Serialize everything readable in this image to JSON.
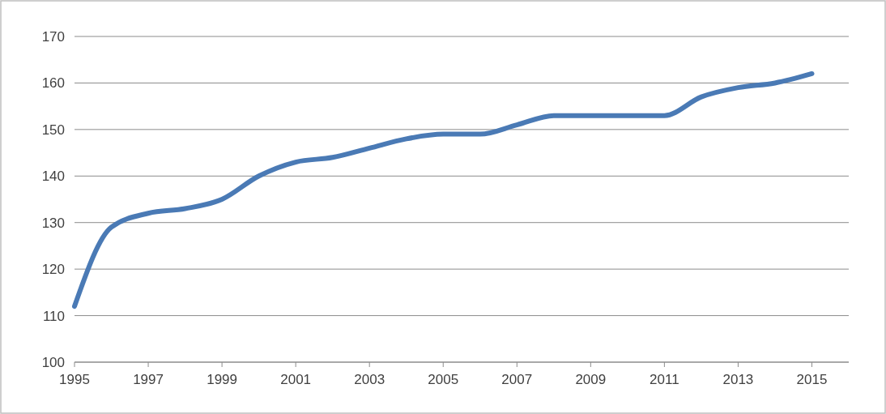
{
  "chart_data": {
    "type": "line",
    "x": [
      1995,
      1996,
      1997,
      1998,
      1999,
      2000,
      2001,
      2002,
      2003,
      2004,
      2005,
      2006,
      2007,
      2008,
      2009,
      2010,
      2011,
      2012,
      2013,
      2014,
      2015
    ],
    "series": [
      {
        "color": "#4a7ab5",
        "values": [
          112,
          129,
          132,
          133,
          135,
          140,
          143,
          144,
          146,
          148,
          149,
          149,
          151,
          153,
          153,
          153,
          153,
          157,
          159,
          160,
          162
        ]
      }
    ],
    "xlim": [
      1995,
      2016
    ],
    "xticks": [
      1995,
      1997,
      1999,
      2001,
      2003,
      2005,
      2007,
      2009,
      2011,
      2013,
      2015
    ],
    "ylim": [
      100,
      170
    ],
    "yticks": [
      100,
      110,
      120,
      130,
      140,
      150,
      160,
      170
    ],
    "grid": "y",
    "marker": "none",
    "line_style": "solid"
  }
}
